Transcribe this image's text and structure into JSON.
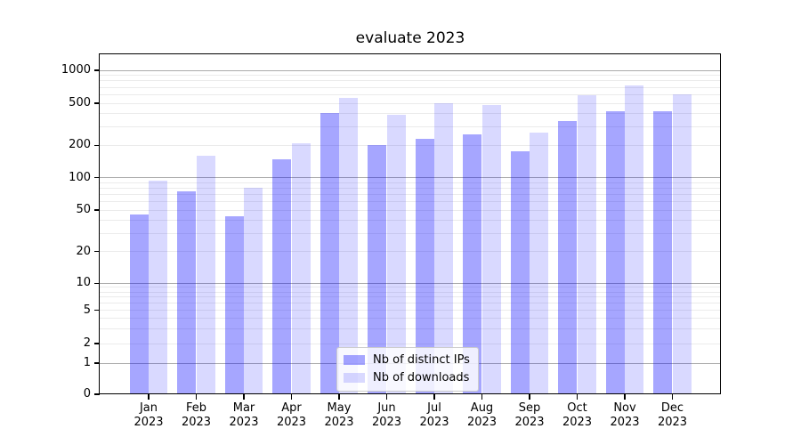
{
  "chart_data": {
    "type": "bar",
    "title": "evaluate 2023",
    "categories": [
      "Jan 2023",
      "Feb 2023",
      "Mar 2023",
      "Apr 2023",
      "May 2023",
      "Jun 2023",
      "Jul 2023",
      "Aug 2023",
      "Sep 2023",
      "Oct 2023",
      "Nov 2023",
      "Dec 2023"
    ],
    "series": [
      {
        "name": "Nb of distinct IPs",
        "color": "#0000ff",
        "alpha": 0.35,
        "values": [
          45,
          74,
          44,
          147,
          405,
          203,
          232,
          255,
          176,
          340,
          420,
          423
        ]
      },
      {
        "name": "Nb of downloads",
        "color": "#0000ff",
        "alpha": 0.15,
        "values": [
          94,
          160,
          81,
          210,
          560,
          386,
          503,
          478,
          262,
          590,
          730,
          607
        ]
      }
    ],
    "xlabel": "",
    "ylabel": "",
    "yscale": "symlog",
    "yticks": [
      0,
      1,
      2,
      5,
      10,
      20,
      50,
      100,
      200,
      500,
      1000
    ],
    "ylim": [
      0,
      1400
    ],
    "grid": {
      "major_ticks": [
        1,
        10,
        100,
        1000
      ],
      "major_color": "#ababab",
      "minor_color": "#ebebeb"
    },
    "legend": {
      "position": "lower center"
    }
  }
}
